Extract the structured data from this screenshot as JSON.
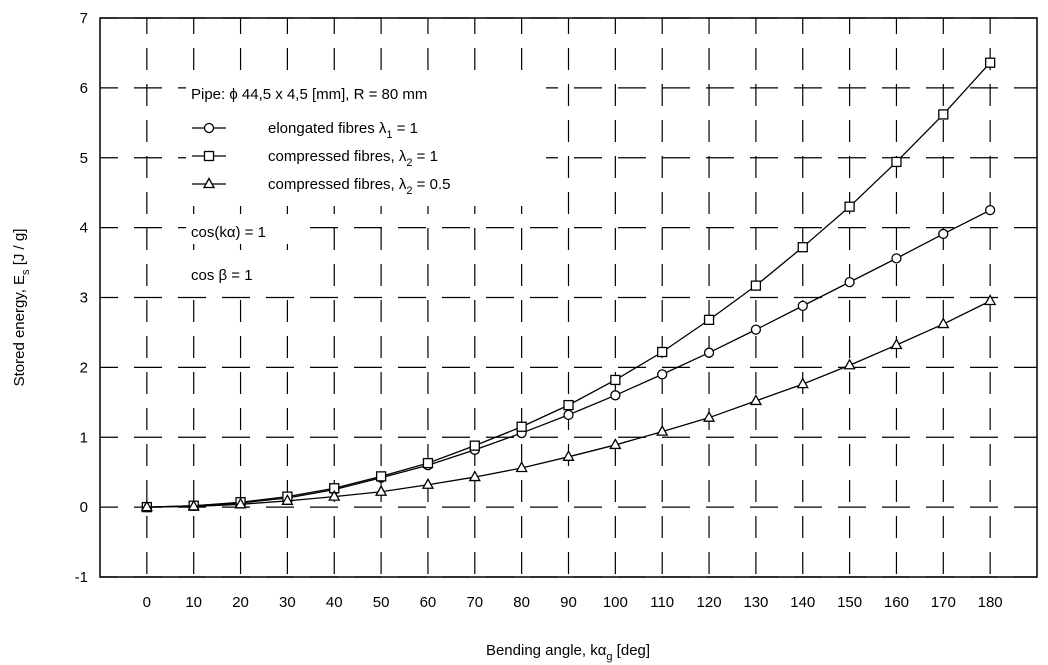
{
  "chart_data": {
    "type": "line",
    "xlabel": "Bending angle, kα",
    "xlabel_sub": "g",
    "xlabel_unit": " [deg]",
    "ylabel": "Stored energy, E",
    "ylabel_sub": "s",
    "ylabel_unit": " [J / g]",
    "xlim": [
      -10,
      190
    ],
    "ylim": [
      -1,
      7
    ],
    "x_ticks": [
      0,
      10,
      20,
      30,
      40,
      50,
      60,
      70,
      80,
      90,
      100,
      110,
      120,
      130,
      140,
      150,
      160,
      170,
      180
    ],
    "y_ticks": [
      -1,
      0,
      1,
      2,
      3,
      4,
      5,
      6,
      7
    ],
    "grid": true,
    "legend_position": "top-left",
    "legend_title": "Pipe: ϕ 44,5 x 4,5 [mm],  R = 80 mm",
    "x": [
      0,
      10,
      20,
      30,
      40,
      50,
      60,
      70,
      80,
      90,
      100,
      110,
      120,
      130,
      140,
      150,
      160,
      170,
      180
    ],
    "series": [
      {
        "name": "elongated fibres λ",
        "name_sub": "1",
        "name_tail": " = 1",
        "marker": "circle",
        "values": [
          0,
          0.02,
          0.06,
          0.13,
          0.25,
          0.42,
          0.6,
          0.82,
          1.06,
          1.32,
          1.6,
          1.9,
          2.21,
          2.54,
          2.88,
          3.22,
          3.56,
          3.91,
          4.25
        ]
      },
      {
        "name": "compressed fibres, λ",
        "name_sub": "2",
        "name_tail": " = 1",
        "marker": "square",
        "values": [
          0,
          0.02,
          0.07,
          0.15,
          0.27,
          0.44,
          0.63,
          0.88,
          1.15,
          1.46,
          1.82,
          2.22,
          2.68,
          3.17,
          3.72,
          4.3,
          4.94,
          5.62,
          6.36
        ]
      },
      {
        "name": "compressed fibres, λ",
        "name_sub": "2",
        "name_tail": " = 0.5",
        "marker": "triangle",
        "values": [
          0,
          0.01,
          0.04,
          0.09,
          0.15,
          0.22,
          0.32,
          0.43,
          0.56,
          0.72,
          0.89,
          1.08,
          1.28,
          1.52,
          1.76,
          2.03,
          2.32,
          2.62,
          2.95
        ]
      }
    ],
    "annotations": [
      "cos(kα) = 1",
      "cos β  = 1"
    ]
  }
}
